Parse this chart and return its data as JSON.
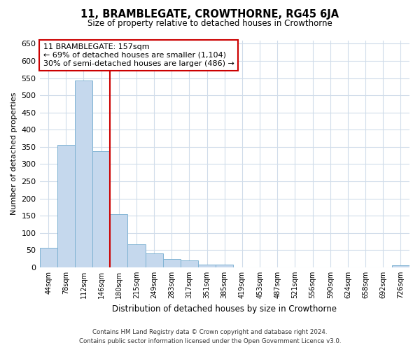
{
  "title": "11, BRAMBLEGATE, CROWTHORNE, RG45 6JA",
  "subtitle": "Size of property relative to detached houses in Crowthorne",
  "xlabel": "Distribution of detached houses by size in Crowthorne",
  "ylabel": "Number of detached properties",
  "bar_labels": [
    "44sqm",
    "78sqm",
    "112sqm",
    "146sqm",
    "180sqm",
    "215sqm",
    "249sqm",
    "283sqm",
    "317sqm",
    "351sqm",
    "385sqm",
    "419sqm",
    "453sqm",
    "487sqm",
    "521sqm",
    "556sqm",
    "590sqm",
    "624sqm",
    "658sqm",
    "692sqm",
    "726sqm"
  ],
  "bar_values": [
    57,
    355,
    543,
    338,
    155,
    68,
    41,
    25,
    20,
    8,
    8,
    0,
    0,
    0,
    0,
    0,
    0,
    0,
    0,
    0,
    5
  ],
  "bar_color": "#c5d8ed",
  "bar_edge_color": "#7fb3d3",
  "property_line_x": 3.5,
  "property_line_color": "#cc0000",
  "ylim": [
    0,
    660
  ],
  "yticks": [
    0,
    50,
    100,
    150,
    200,
    250,
    300,
    350,
    400,
    450,
    500,
    550,
    600,
    650
  ],
  "annotation_title": "11 BRAMBLEGATE: 157sqm",
  "annotation_line1": "← 69% of detached houses are smaller (1,104)",
  "annotation_line2": "30% of semi-detached houses are larger (486) →",
  "footer1": "Contains HM Land Registry data © Crown copyright and database right 2024.",
  "footer2": "Contains public sector information licensed under the Open Government Licence v3.0.",
  "bg_color": "#ffffff",
  "grid_color": "#d0dcea"
}
